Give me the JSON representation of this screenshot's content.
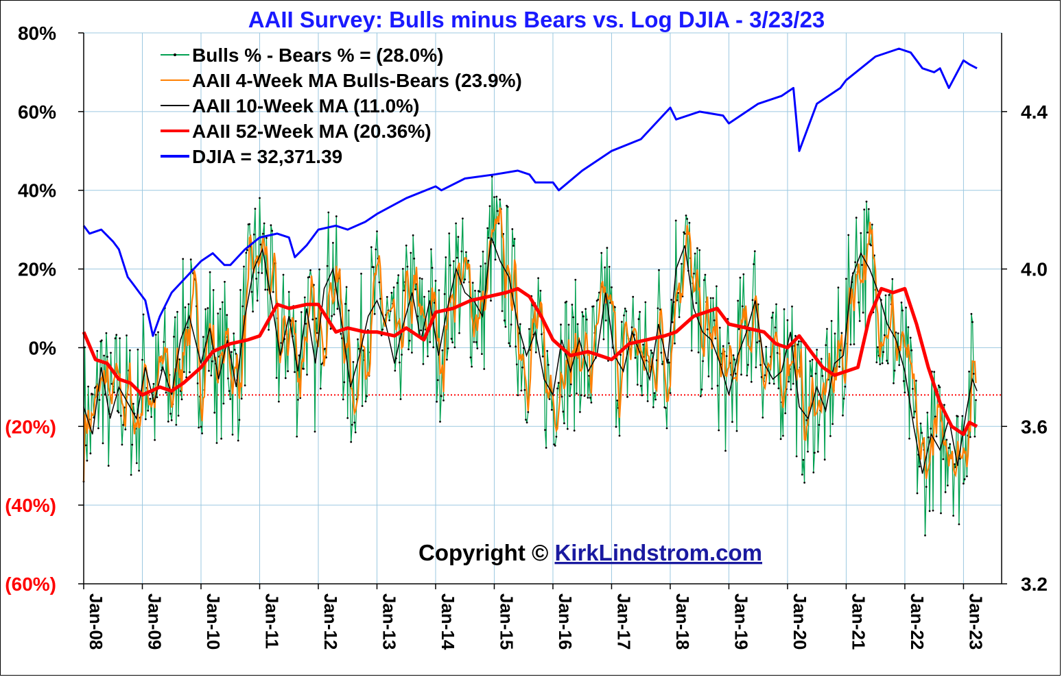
{
  "chart_data": {
    "type": "line",
    "title": "AAII Survey: Bulls minus Bears vs. Log DJIA - 3/23/23",
    "x_tick_labels": [
      "Jan-08",
      "Jan-09",
      "Jan-10",
      "Jan-11",
      "Jan-12",
      "Jan-13",
      "Jan-14",
      "Jan-15",
      "Jan-16",
      "Jan-17",
      "Jan-18",
      "Jan-19",
      "Jan-20",
      "Jan-21",
      "Jan-22",
      "Jan-23"
    ],
    "x_range": [
      2008.0,
      2023.65
    ],
    "y_left": {
      "range": [
        -60,
        80
      ],
      "ticks": [
        80,
        60,
        40,
        20,
        0,
        -20,
        -40,
        -60
      ],
      "tick_labels": [
        "80%",
        "60%",
        "40%",
        "20%",
        "0%",
        "(20%)",
        "(40%)",
        "(60%)"
      ]
    },
    "y_right": {
      "scale": "log10 of DJIA",
      "range": [
        3.2,
        4.6
      ],
      "ticks": [
        4.4,
        4.0,
        3.6,
        3.2
      ],
      "tick_labels": [
        "4.4",
        "4.0",
        "3.6",
        "3.2"
      ]
    },
    "reference_line": {
      "value": -12,
      "style": "dotted",
      "color": "#ff0000"
    },
    "grid": true,
    "legend_position": "top-left",
    "legend": [
      {
        "label": "Bulls % - Bears % = (28.0%)",
        "color": "#00a050"
      },
      {
        "label": "AAII 4-Week MA Bulls-Bears (23.9%)",
        "color": "#ff7f00"
      },
      {
        "label": "AAII 10-Week MA (11.0%)",
        "color": "#000000"
      },
      {
        "label": "AAII 52-Week MA (20.36%)",
        "color": "#ff0000"
      },
      {
        "label": "DJIA =  32,371.39",
        "color": "#0000ff"
      }
    ],
    "series": [
      {
        "name": "DJIA",
        "axis": "right",
        "color": "#0000ff",
        "x": [
          2008.0,
          2008.1,
          2008.3,
          2008.5,
          2008.6,
          2008.75,
          2008.85,
          2008.95,
          2009.05,
          2009.18,
          2009.3,
          2009.5,
          2009.75,
          2010.0,
          2010.2,
          2010.4,
          2010.5,
          2010.75,
          2011.0,
          2011.3,
          2011.5,
          2011.6,
          2011.8,
          2012.0,
          2012.3,
          2012.5,
          2012.8,
          2013.0,
          2013.5,
          2014.0,
          2014.1,
          2014.5,
          2015.0,
          2015.4,
          2015.6,
          2015.7,
          2016.0,
          2016.1,
          2016.5,
          2017.0,
          2017.5,
          2018.0,
          2018.1,
          2018.5,
          2018.9,
          2019.0,
          2019.5,
          2019.9,
          2020.1,
          2020.2,
          2020.5,
          2020.9,
          2021.0,
          2021.5,
          2021.9,
          2022.1,
          2022.3,
          2022.5,
          2022.6,
          2022.75,
          2023.0,
          2023.1,
          2023.23
        ],
        "y": [
          4.11,
          4.09,
          4.1,
          4.07,
          4.05,
          3.98,
          3.96,
          3.94,
          3.92,
          3.83,
          3.88,
          3.94,
          3.98,
          4.02,
          4.04,
          4.01,
          4.01,
          4.05,
          4.08,
          4.09,
          4.08,
          4.03,
          4.06,
          4.1,
          4.11,
          4.1,
          4.12,
          4.14,
          4.18,
          4.21,
          4.2,
          4.23,
          4.24,
          4.25,
          4.24,
          4.22,
          4.22,
          4.2,
          4.25,
          4.3,
          4.33,
          4.41,
          4.38,
          4.4,
          4.39,
          4.37,
          4.42,
          4.44,
          4.46,
          4.3,
          4.42,
          4.46,
          4.48,
          4.54,
          4.56,
          4.55,
          4.51,
          4.5,
          4.51,
          4.46,
          4.53,
          4.52,
          4.51
        ]
      },
      {
        "name": "AAII 52-Week MA",
        "axis": "left",
        "color": "#ff0000",
        "x": [
          2008.0,
          2008.2,
          2008.4,
          2008.6,
          2008.8,
          2009.0,
          2009.3,
          2009.5,
          2009.7,
          2010.0,
          2010.2,
          2010.5,
          2010.8,
          2011.0,
          2011.3,
          2011.5,
          2011.8,
          2012.0,
          2012.3,
          2012.5,
          2012.8,
          2013.0,
          2013.3,
          2013.5,
          2013.8,
          2014.0,
          2014.3,
          2014.6,
          2014.9,
          2015.2,
          2015.4,
          2015.6,
          2015.8,
          2016.0,
          2016.3,
          2016.6,
          2016.8,
          2017.0,
          2017.3,
          2017.6,
          2017.9,
          2018.1,
          2018.4,
          2018.6,
          2018.8,
          2019.0,
          2019.3,
          2019.6,
          2019.8,
          2020.0,
          2020.2,
          2020.4,
          2020.6,
          2020.8,
          2021.0,
          2021.2,
          2021.4,
          2021.6,
          2021.8,
          2022.0,
          2022.2,
          2022.4,
          2022.6,
          2022.8,
          2023.0,
          2023.1,
          2023.23
        ],
        "y": [
          4,
          -3,
          -4,
          -8,
          -9,
          -12,
          -10,
          -11,
          -9,
          -5,
          -1,
          1,
          2,
          3,
          11,
          10,
          11,
          11,
          4,
          5,
          4,
          4,
          3,
          5,
          2,
          9,
          10,
          12,
          13,
          14,
          15,
          13,
          8,
          2,
          -2,
          -1,
          -2,
          -3,
          1,
          2,
          3,
          4,
          8,
          9,
          10,
          6,
          5,
          4,
          1,
          0,
          3,
          -1,
          -5,
          -7,
          -6,
          -5,
          8,
          15,
          14,
          15,
          6,
          -5,
          -14,
          -20,
          -22,
          -19,
          -20
        ]
      },
      {
        "name": "AAII 10-Week MA",
        "axis": "left",
        "color": "#000000",
        "x": [
          2008.0,
          2008.15,
          2008.3,
          2008.45,
          2008.6,
          2008.75,
          2008.9,
          2009.05,
          2009.2,
          2009.35,
          2009.5,
          2009.65,
          2009.8,
          2010.0,
          2010.15,
          2010.3,
          2010.45,
          2010.6,
          2010.75,
          2010.9,
          2011.05,
          2011.2,
          2011.35,
          2011.5,
          2011.65,
          2011.8,
          2011.95,
          2012.1,
          2012.25,
          2012.4,
          2012.55,
          2012.7,
          2012.85,
          2013.0,
          2013.15,
          2013.3,
          2013.45,
          2013.6,
          2013.75,
          2013.9,
          2014.05,
          2014.2,
          2014.35,
          2014.5,
          2014.65,
          2014.8,
          2014.95,
          2015.1,
          2015.25,
          2015.4,
          2015.55,
          2015.7,
          2015.85,
          2016.0,
          2016.15,
          2016.3,
          2016.45,
          2016.6,
          2016.75,
          2016.9,
          2017.05,
          2017.2,
          2017.35,
          2017.5,
          2017.65,
          2017.8,
          2017.95,
          2018.1,
          2018.25,
          2018.4,
          2018.55,
          2018.7,
          2018.85,
          2019.0,
          2019.15,
          2019.3,
          2019.45,
          2019.6,
          2019.75,
          2019.9,
          2020.05,
          2020.2,
          2020.35,
          2020.5,
          2020.65,
          2020.8,
          2020.95,
          2021.1,
          2021.25,
          2021.4,
          2021.55,
          2021.7,
          2021.85,
          2022.0,
          2022.15,
          2022.3,
          2022.45,
          2022.6,
          2022.75,
          2022.9,
          2023.05,
          2023.15,
          2023.23
        ],
        "y": [
          -15,
          -22,
          -5,
          -18,
          -10,
          -14,
          -18,
          -5,
          -14,
          -5,
          -12,
          2,
          8,
          -4,
          5,
          -8,
          2,
          -10,
          8,
          20,
          25,
          12,
          -2,
          8,
          -6,
          10,
          -4,
          15,
          20,
          6,
          -10,
          -2,
          8,
          12,
          6,
          -4,
          6,
          14,
          2,
          12,
          -2,
          10,
          20,
          14,
          12,
          8,
          28,
          22,
          18,
          6,
          -2,
          4,
          -8,
          -12,
          2,
          -6,
          2,
          -6,
          -2,
          14,
          -2,
          -6,
          4,
          -2,
          -8,
          6,
          -4,
          20,
          26,
          10,
          4,
          2,
          -4,
          -12,
          -2,
          4,
          12,
          -4,
          -8,
          -6,
          4,
          -15,
          -18,
          -10,
          -16,
          -4,
          -2,
          18,
          24,
          20,
          14,
          6,
          2,
          -6,
          -20,
          -32,
          -22,
          -26,
          -18,
          -30,
          -16,
          -8,
          -11
        ]
      }
    ]
  }
}
